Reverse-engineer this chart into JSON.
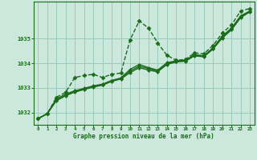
{
  "title": "Graphe pression niveau de la mer (hPa)",
  "background_color": "#cce8dd",
  "grid_color": "#99ccbb",
  "line_color": "#1a6b1a",
  "xlim": [
    -0.5,
    23.5
  ],
  "ylim": [
    1031.5,
    1036.5
  ],
  "yticks": [
    1032,
    1033,
    1034,
    1035
  ],
  "xticks": [
    0,
    1,
    2,
    3,
    4,
    5,
    6,
    7,
    8,
    9,
    10,
    11,
    12,
    13,
    14,
    15,
    16,
    17,
    18,
    19,
    20,
    21,
    22,
    23
  ],
  "series": [
    {
      "x": [
        0,
        1,
        2,
        3,
        4,
        5,
        6,
        7,
        8,
        9,
        10,
        11,
        12,
        13,
        14,
        15,
        16,
        17,
        18,
        19,
        20,
        21,
        22,
        23
      ],
      "y": [
        1031.75,
        1031.95,
        1032.62,
        1032.82,
        1033.42,
        1033.5,
        1033.55,
        1033.42,
        1033.55,
        1033.6,
        1034.95,
        1035.72,
        1035.42,
        1034.82,
        1034.32,
        1034.12,
        1034.15,
        1034.42,
        1034.38,
        1034.72,
        1035.22,
        1035.55,
        1036.12,
        1036.22
      ],
      "marker": "D",
      "markersize": 2.5,
      "linewidth": 1.0,
      "linestyle": "--"
    },
    {
      "x": [
        0,
        1,
        2,
        3,
        4,
        5,
        6,
        7,
        8,
        9,
        10,
        11,
        12,
        13,
        14,
        15,
        16,
        17,
        18,
        19,
        20,
        21,
        22,
        23
      ],
      "y": [
        1031.75,
        1031.95,
        1032.55,
        1032.75,
        1032.88,
        1032.98,
        1033.08,
        1033.15,
        1033.3,
        1033.4,
        1033.75,
        1033.95,
        1033.82,
        1033.72,
        1034.02,
        1034.1,
        1034.12,
        1034.35,
        1034.3,
        1034.62,
        1035.1,
        1035.42,
        1035.92,
        1036.12
      ],
      "marker": "D",
      "markersize": 2.0,
      "linewidth": 1.0,
      "linestyle": "-"
    },
    {
      "x": [
        0,
        1,
        2,
        3,
        4,
        5,
        6,
        7,
        8,
        9,
        10,
        11,
        12,
        13,
        14,
        15,
        16,
        17,
        18,
        19,
        20,
        21,
        22,
        23
      ],
      "y": [
        1031.75,
        1031.95,
        1032.5,
        1032.7,
        1032.85,
        1032.95,
        1033.05,
        1033.13,
        1033.28,
        1033.38,
        1033.68,
        1033.88,
        1033.78,
        1033.68,
        1033.98,
        1034.07,
        1034.1,
        1034.32,
        1034.28,
        1034.6,
        1035.05,
        1035.38,
        1035.88,
        1036.1
      ],
      "marker": "D",
      "markersize": 2.0,
      "linewidth": 1.0,
      "linestyle": "-"
    },
    {
      "x": [
        0,
        1,
        2,
        3,
        4,
        5,
        6,
        7,
        8,
        9,
        10,
        11,
        12,
        13,
        14,
        15,
        16,
        17,
        18,
        19,
        20,
        21,
        22,
        23
      ],
      "y": [
        1031.75,
        1031.95,
        1032.48,
        1032.68,
        1032.83,
        1032.93,
        1033.03,
        1033.11,
        1033.26,
        1033.36,
        1033.62,
        1033.82,
        1033.72,
        1033.65,
        1033.95,
        1034.05,
        1034.08,
        1034.3,
        1034.26,
        1034.57,
        1035.02,
        1035.35,
        1035.85,
        1036.08
      ],
      "marker": "D",
      "markersize": 2.0,
      "linewidth": 1.0,
      "linestyle": "-"
    }
  ]
}
